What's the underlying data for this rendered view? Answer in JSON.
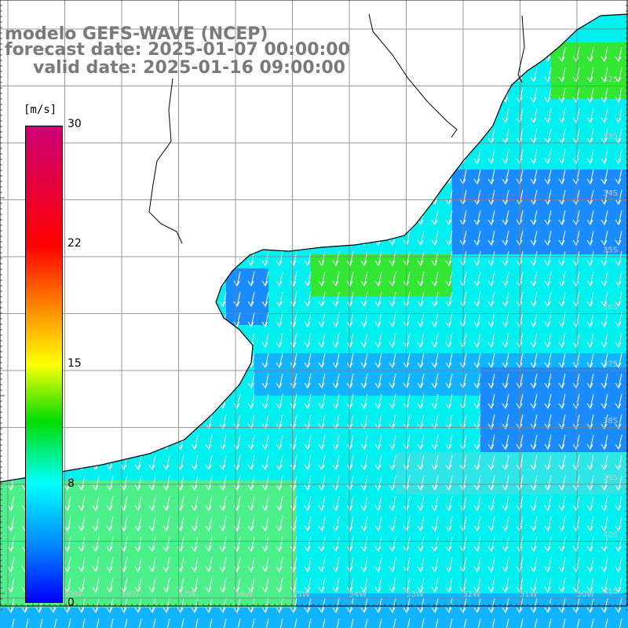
{
  "title": {
    "model": "modelo GEFS-WAVE (NCEP)",
    "forecast": "forecast date: 2025-01-07 00:00:00",
    "valid": "valid date: 2025-01-16 09:00:00"
  },
  "colorbar": {
    "unit": "[m/s]",
    "ticks": [
      {
        "label": "30",
        "value": 30
      },
      {
        "label": "22",
        "value": 22
      },
      {
        "label": "15",
        "value": 15
      },
      {
        "label": "8",
        "value": 8
      },
      {
        "label": "0",
        "value": 0
      }
    ],
    "colors": [
      "#cc0077",
      "#ff0000",
      "#ff8800",
      "#ffff00",
      "#00dd00",
      "#00ffff",
      "#0088ff",
      "#0000ff"
    ]
  },
  "map": {
    "variable": "wind speed and direction",
    "lat_labels": [
      "32S",
      "33S",
      "34S",
      "35S",
      "36S",
      "37S",
      "38S",
      "39S",
      "40S",
      "41S"
    ],
    "lon_labels": [
      "59W",
      "58W",
      "57W",
      "56W",
      "55W",
      "54W",
      "53W",
      "52W",
      "51W",
      "50W"
    ],
    "field_colors": {
      "green": "#33e633",
      "light_green": "#4cf08a",
      "cyan": "#00f0f0",
      "light_cyan": "#2ee6e6",
      "sky_blue": "#12b4ff",
      "blue": "#1a8cff",
      "land": "#ffffff",
      "coast": "#000000"
    },
    "arrow_direction": "predominantly southward / south-southwestward"
  }
}
